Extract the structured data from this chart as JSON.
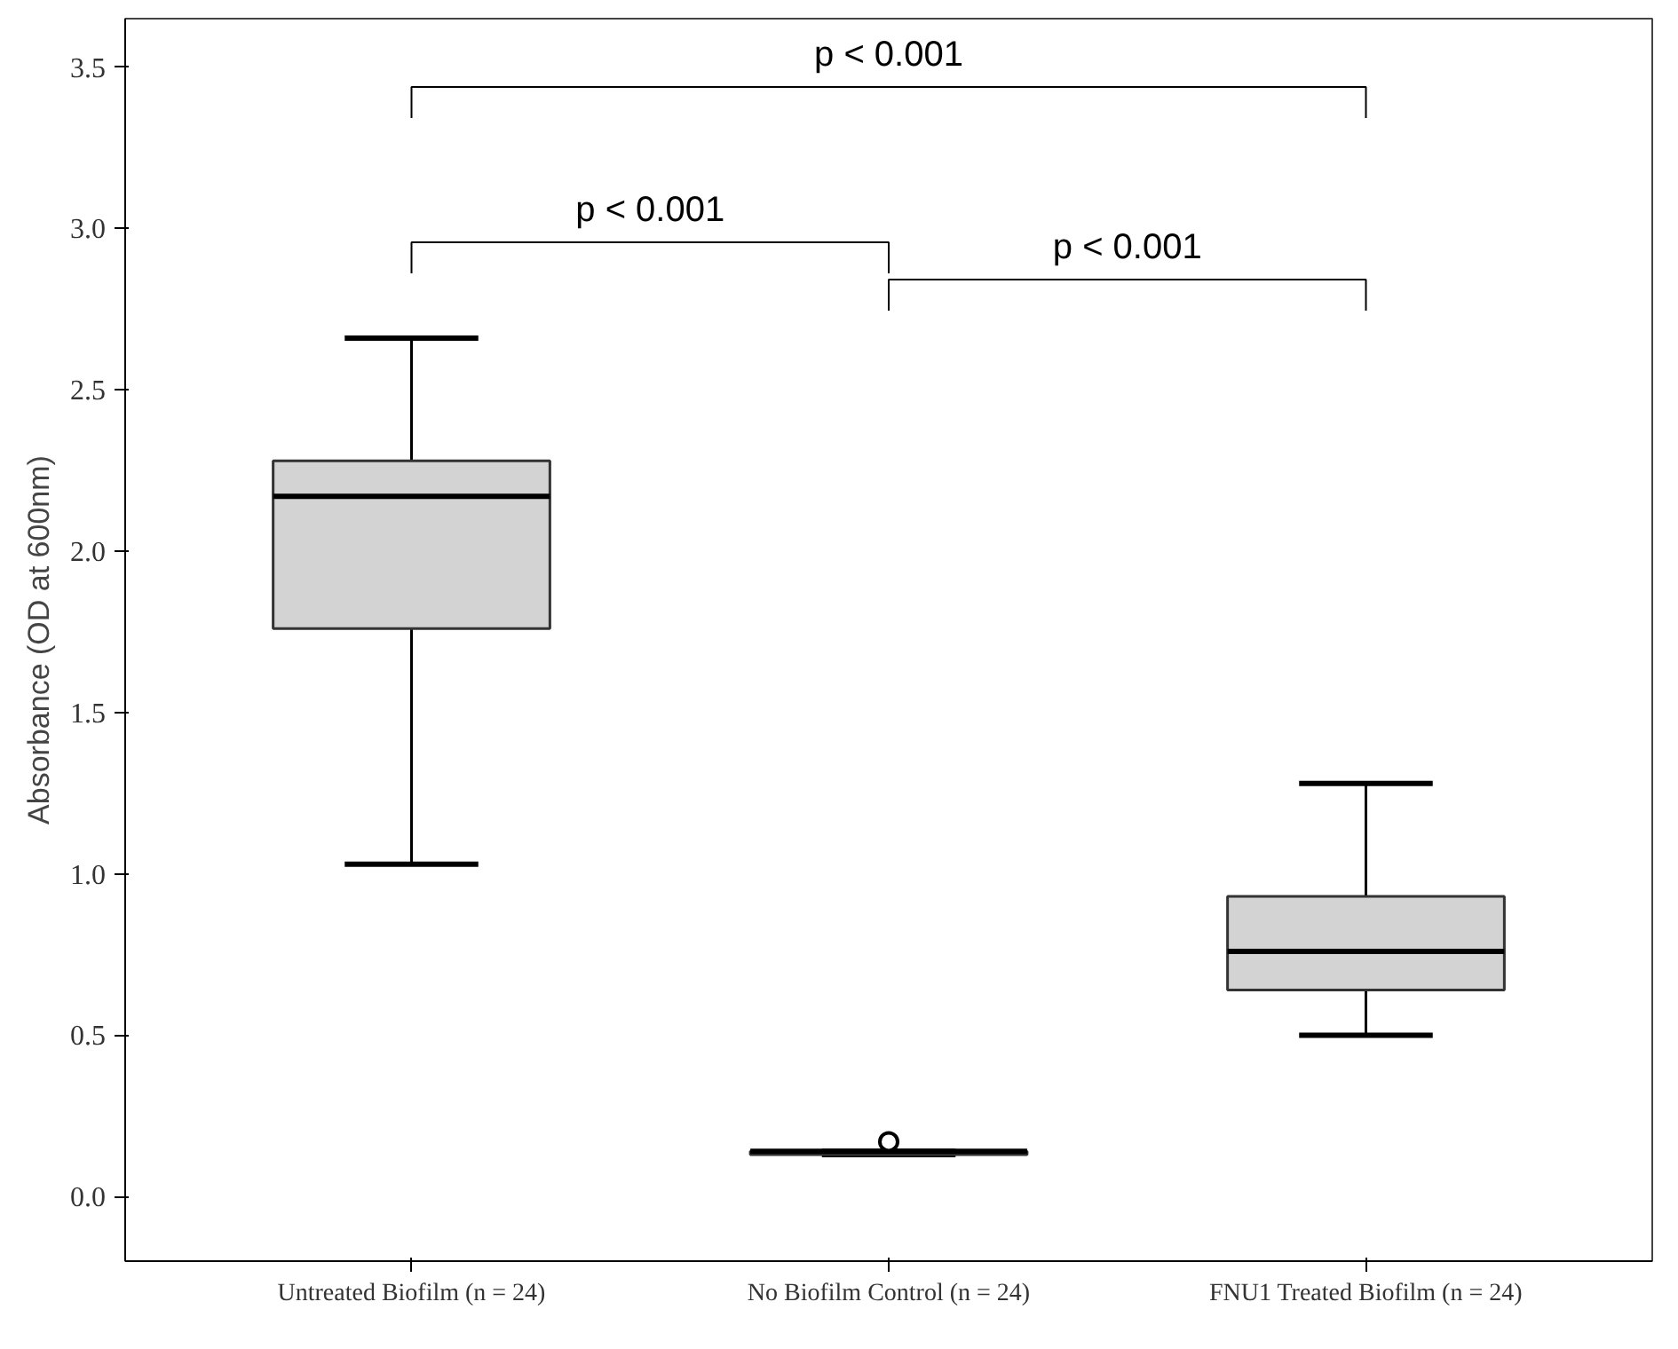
{
  "chart_data": {
    "type": "box",
    "ylabel": "Absorbance (OD at 600nm)",
    "categories": [
      "Untreated Biofilm (n = 24)",
      "No Biofilm Control (n = 24)",
      "FNU1 Treated Biofilm (n = 24)"
    ],
    "color": "#d3d3d3",
    "boxes": [
      {
        "low": 1.03,
        "q1": 1.76,
        "median": 2.17,
        "q3": 2.28,
        "high": 2.66
      },
      {
        "low": 0.13,
        "q1": 0.13,
        "median": 0.14,
        "q3": 0.14,
        "high": 0.14,
        "outliers": [
          0.17
        ]
      },
      {
        "low": 0.5,
        "q1": 0.64,
        "median": 0.76,
        "q3": 0.93,
        "high": 1.28
      }
    ],
    "ylim": [
      -0.2,
      3.65
    ],
    "yticks": [
      {
        "value": 0,
        "label": "0.0"
      },
      0.5,
      {
        "value": 1,
        "label": "1.0"
      },
      1.5,
      {
        "value": 2,
        "label": "2.0"
      },
      2.5,
      {
        "value": 3,
        "label": "3.0"
      },
      3.5
    ],
    "grid": false,
    "annotations": [
      "p < 0.001",
      "p < 0.001",
      "p < 0.001"
    ]
  }
}
